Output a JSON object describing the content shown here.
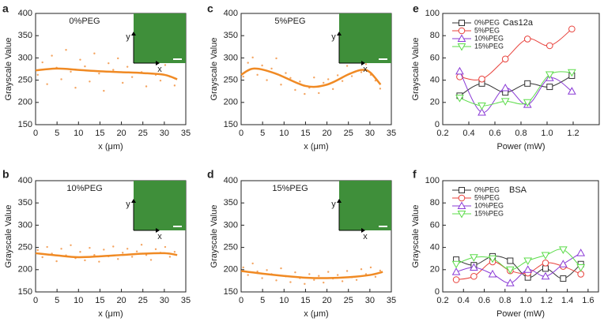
{
  "chart_data": [
    {
      "type": "scatter",
      "panel": "a",
      "label": "0%PEG",
      "xlabel": "x (μm)",
      "ylabel": "Grayscale Value",
      "inset_x_label": "x",
      "inset_y_label": "y",
      "xlim": [
        0,
        35
      ],
      "xticks": [
        0,
        5,
        10,
        15,
        20,
        25,
        30,
        35
      ],
      "ylim": [
        150,
        400
      ],
      "yticks": [
        150,
        200,
        250,
        300,
        350,
        400
      ],
      "color": "#f4a460",
      "fit_color": "#f08a24",
      "x": [
        0.5,
        1.6,
        2.7,
        3.8,
        4.9,
        6.0,
        7.1,
        8.2,
        9.3,
        10.4,
        11.5,
        12.6,
        13.7,
        14.8,
        15.9,
        17.0,
        18.1,
        19.2,
        20.3,
        21.4,
        22.5,
        23.6,
        24.7,
        25.8,
        26.9,
        28.0,
        29.1,
        30.2,
        31.3,
        32.4
      ],
      "values": [
        262,
        290,
        241,
        305,
        278,
        252,
        318,
        269,
        233,
        296,
        281,
        247,
        310,
        265,
        226,
        288,
        273,
        299,
        244,
        280,
        257,
        302,
        268,
        236,
        291,
        262,
        249,
        284,
        258,
        238
      ],
      "fit_x": [
        0,
        5,
        10,
        15,
        20,
        25,
        30,
        33
      ],
      "fit_values": [
        272,
        276,
        273,
        270,
        268,
        266,
        262,
        252
      ]
    },
    {
      "type": "scatter",
      "panel": "c",
      "label": "5%PEG",
      "xlabel": "x (μm)",
      "ylabel": "Grayscale Value",
      "inset_x_label": "x",
      "inset_y_label": "y",
      "xlim": [
        0,
        35
      ],
      "xticks": [
        0,
        5,
        10,
        15,
        20,
        25,
        30,
        35
      ],
      "ylim": [
        150,
        400
      ],
      "yticks": [
        150,
        200,
        250,
        300,
        350,
        400
      ],
      "color": "#f4a460",
      "fit_color": "#f08a24",
      "x": [
        0.5,
        1.6,
        2.7,
        3.8,
        4.9,
        6.0,
        7.1,
        8.2,
        9.3,
        10.4,
        11.5,
        12.6,
        13.7,
        14.8,
        15.9,
        17.0,
        18.1,
        19.2,
        20.3,
        21.4,
        22.5,
        23.6,
        24.7,
        25.8,
        26.9,
        28.0,
        29.1,
        30.2,
        31.3,
        32.4
      ],
      "values": [
        258,
        289,
        301,
        262,
        283,
        250,
        276,
        299,
        240,
        266,
        255,
        228,
        247,
        219,
        233,
        256,
        221,
        244,
        252,
        230,
        261,
        248,
        282,
        259,
        291,
        268,
        286,
        262,
        249,
        231
      ],
      "fit_x": [
        0,
        3,
        8,
        15,
        20,
        25,
        28,
        30,
        32.5
      ],
      "fit_values": [
        262,
        276,
        265,
        237,
        240,
        263,
        273,
        268,
        240
      ]
    },
    {
      "type": "line",
      "panel": "e",
      "title": "Cas12a",
      "xlabel": "Power (mW)",
      "ylabel": "Grayscale Value",
      "xlim": [
        0.2,
        1.4
      ],
      "xticks": [
        0.2,
        0.4,
        0.6,
        0.8,
        {
          "value": 1,
          "label": "1.0"
        },
        1.2
      ],
      "ylim": [
        0,
        100
      ],
      "yticks": [
        0,
        20,
        40,
        60,
        80,
        100
      ],
      "x": [
        0.33,
        0.5,
        0.68,
        0.85,
        1.02,
        1.19
      ],
      "series": [
        {
          "name": "0%PEG",
          "color": "#333333",
          "marker": "square",
          "values": [
            26,
            37,
            29,
            37,
            34,
            44
          ]
        },
        {
          "name": "5%PEG",
          "color": "#e8403a",
          "marker": "circle",
          "values": [
            43,
            41,
            59,
            77,
            71,
            86
          ]
        },
        {
          "name": "10%PEG",
          "color": "#8a3ad6",
          "marker": "triangle-up",
          "values": [
            48,
            11,
            33,
            18,
            42,
            30
          ]
        },
        {
          "name": "15%PEG",
          "color": "#5cdc4a",
          "marker": "triangle-down",
          "values": [
            24,
            17,
            21,
            20,
            45,
            47
          ]
        }
      ]
    },
    {
      "type": "scatter",
      "panel": "b",
      "label": "10%PEG",
      "xlabel": "x (μm)",
      "ylabel": "Grayscale Value",
      "inset_x_label": "x",
      "inset_y_label": "y",
      "xlim": [
        0,
        35
      ],
      "xticks": [
        0,
        5,
        10,
        15,
        20,
        25,
        30,
        35
      ],
      "ylim": [
        150,
        400
      ],
      "yticks": [
        150,
        200,
        250,
        300,
        350,
        400
      ],
      "color": "#f4a460",
      "fit_color": "#f08a24",
      "x": [
        0.5,
        1.6,
        2.7,
        3.8,
        4.9,
        6.0,
        7.1,
        8.2,
        9.3,
        10.4,
        11.5,
        12.6,
        13.7,
        14.8,
        15.9,
        17.0,
        18.1,
        19.2,
        20.3,
        21.4,
        22.5,
        23.6,
        24.7,
        25.8,
        26.9,
        28.0,
        29.1,
        30.2,
        31.3,
        32.4
      ],
      "values": [
        244,
        228,
        251,
        236,
        219,
        247,
        232,
        255,
        226,
        240,
        221,
        249,
        233,
        218,
        245,
        230,
        252,
        224,
        238,
        247,
        229,
        241,
        256,
        233,
        222,
        246,
        238,
        251,
        229,
        240
      ],
      "fit_x": [
        0,
        5,
        10,
        15,
        20,
        25,
        30,
        33
      ],
      "fit_values": [
        237,
        232,
        228,
        230,
        233,
        236,
        237,
        233
      ]
    },
    {
      "type": "scatter",
      "panel": "d",
      "label": "15%PEG",
      "xlabel": "x (μm)",
      "ylabel": "Grayscale Value",
      "inset_x_label": "x",
      "inset_y_label": "y",
      "xlim": [
        0,
        35
      ],
      "xticks": [
        0,
        5,
        10,
        15,
        20,
        25,
        30,
        35
      ],
      "ylim": [
        150,
        400
      ],
      "yticks": [
        150,
        200,
        250,
        300,
        350,
        400
      ],
      "color": "#f4a460",
      "fit_color": "#f08a24",
      "x": [
        0.5,
        1.6,
        2.7,
        3.8,
        4.9,
        6.0,
        7.1,
        8.2,
        9.3,
        10.4,
        11.5,
        12.6,
        13.7,
        14.8,
        15.9,
        17.0,
        18.1,
        19.2,
        20.3,
        21.4,
        22.5,
        23.6,
        24.7,
        25.8,
        26.9,
        28.0,
        29.1,
        30.2,
        31.3,
        32.4
      ],
      "values": [
        205,
        188,
        214,
        196,
        181,
        199,
        190,
        176,
        203,
        185,
        172,
        194,
        181,
        168,
        190,
        177,
        186,
        171,
        195,
        180,
        188,
        174,
        197,
        183,
        177,
        201,
        190,
        205,
        184,
        198
      ],
      "fit_x": [
        0,
        5,
        10,
        15,
        20,
        25,
        30,
        33
      ],
      "fit_values": [
        197,
        191,
        186,
        182,
        181,
        183,
        188,
        195
      ]
    },
    {
      "type": "line",
      "panel": "f",
      "title": "BSA",
      "xlabel": "Power (mW)",
      "ylabel": "Grayscale Value",
      "xlim": [
        0.2,
        1.7
      ],
      "xticks": [
        0.2,
        0.4,
        0.6,
        0.8,
        {
          "value": 1,
          "label": "1.0"
        },
        1.2,
        1.4,
        1.6
      ],
      "ylim": [
        0,
        100
      ],
      "yticks": [
        0,
        20,
        40,
        60,
        80,
        100
      ],
      "x": [
        0.33,
        0.5,
        0.68,
        0.85,
        1.02,
        1.19,
        1.36,
        1.53
      ],
      "series": [
        {
          "name": "0%PEG",
          "color": "#333333",
          "marker": "square",
          "values": [
            29,
            24,
            32,
            28,
            13,
            21,
            12,
            25
          ]
        },
        {
          "name": "5%PEG",
          "color": "#e8403a",
          "marker": "circle",
          "values": [
            11,
            14,
            27,
            19,
            17,
            26,
            23,
            16
          ]
        },
        {
          "name": "10%PEG",
          "color": "#8a3ad6",
          "marker": "triangle-up",
          "values": [
            18,
            22,
            16,
            8,
            20,
            14,
            25,
            35
          ]
        },
        {
          "name": "15%PEG",
          "color": "#5cdc4a",
          "marker": "triangle-down",
          "values": [
            25,
            31,
            30,
            20,
            28,
            33,
            38,
            22
          ]
        }
      ]
    }
  ]
}
